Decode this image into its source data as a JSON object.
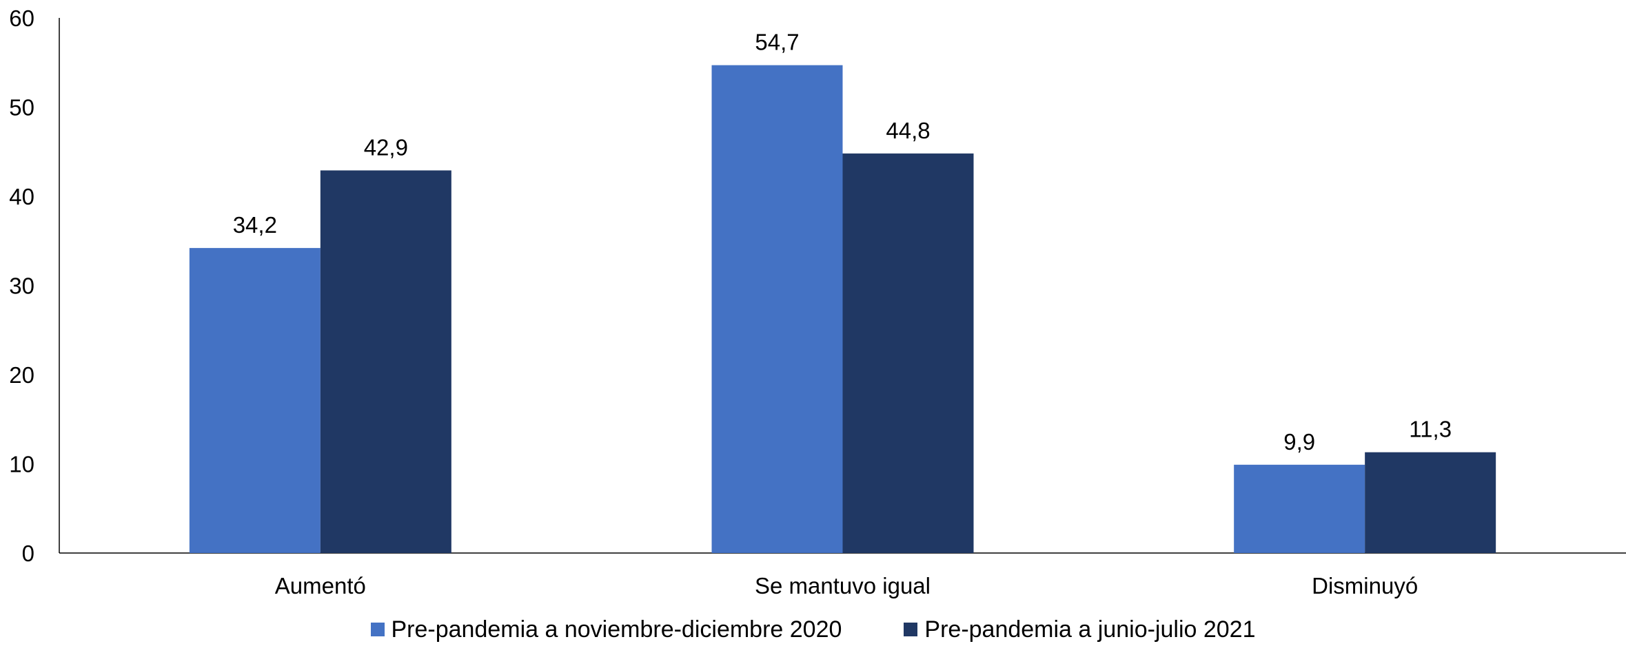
{
  "chart_data": {
    "type": "bar",
    "categories": [
      "Aumentó",
      "Se mantuvo igual",
      "Disminuyó"
    ],
    "series": [
      {
        "name": "Pre-pandemia a noviembre-diciembre 2020",
        "values": [
          34.2,
          54.7,
          9.9
        ],
        "labels": [
          "34,2",
          "54,7",
          "9,9"
        ],
        "color": "#4472C4"
      },
      {
        "name": "Pre-pandemia a junio-julio 2021",
        "values": [
          42.9,
          44.8,
          11.3
        ],
        "labels": [
          "42,9",
          "44,8",
          "11,3"
        ],
        "color": "#203864"
      }
    ],
    "y_ticks": [
      "0",
      "10",
      "20",
      "30",
      "40",
      "50",
      "60"
    ],
    "ylim": [
      0,
      60
    ],
    "grid": false,
    "legend_position": "bottom"
  }
}
